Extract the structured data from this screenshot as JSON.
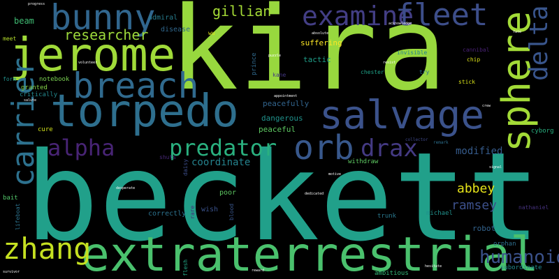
{
  "words": [
    {
      "text": "beckett",
      "color": "#21a08a"
    },
    {
      "text": "kira",
      "color": "#98d83e"
    },
    {
      "text": "extraterrestrial",
      "color": "#4ac16d"
    },
    {
      "text": "torpedo",
      "color": "#2e6f8e"
    },
    {
      "text": "jerome",
      "color": "#a0da39"
    },
    {
      "text": "bunny",
      "color": "#31668e"
    },
    {
      "text": "breach",
      "color": "#306a8e"
    },
    {
      "text": "salvage",
      "color": "#3b528b"
    },
    {
      "text": "sphere",
      "color": "#a2da37"
    },
    {
      "text": "carrier",
      "color": "#2d718e"
    },
    {
      "text": "zhang",
      "color": "#c5e021"
    },
    {
      "text": "examine",
      "color": "#433e85"
    },
    {
      "text": "fleet",
      "color": "#3d4e8a"
    },
    {
      "text": "delta",
      "color": "#39558c"
    },
    {
      "text": "orb",
      "color": "#38588c"
    },
    {
      "text": "predator",
      "color": "#2ab07f"
    },
    {
      "text": "drax",
      "color": "#443a83"
    },
    {
      "text": "alpha",
      "color": "#482475"
    },
    {
      "text": "humanoid",
      "color": "#3b528b"
    },
    {
      "text": "researcher",
      "color": "#9dd93b"
    },
    {
      "text": "gillian",
      "color": "#a5db36"
    },
    {
      "text": "abbey",
      "color": "#e7e419"
    },
    {
      "text": "ramsey",
      "color": "#3c508b"
    },
    {
      "text": "modified",
      "color": "#365c8d"
    },
    {
      "text": "coordinate",
      "color": "#25838e"
    },
    {
      "text": "dangerous",
      "color": "#20928c"
    },
    {
      "text": "peacefully",
      "color": "#32658e"
    },
    {
      "text": "peaceful",
      "color": "#5ec962"
    },
    {
      "text": "suffering",
      "color": "#fde725"
    },
    {
      "text": "tactic",
      "color": "#1f9e89"
    },
    {
      "text": "beam",
      "color": "#3fbc73"
    },
    {
      "text": "admiral",
      "color": "#287d8e"
    },
    {
      "text": "disease",
      "color": "#31688e"
    },
    {
      "text": "notebook",
      "color": "#7ad151"
    },
    {
      "text": "critically",
      "color": "#23898e"
    },
    {
      "text": "granted",
      "color": "#86d549"
    },
    {
      "text": "cure",
      "color": "#d2e21b"
    },
    {
      "text": "correctly",
      "color": "#2c728e"
    },
    {
      "text": "wish",
      "color": "#3b528b"
    },
    {
      "text": "poor",
      "color": "#5ec962"
    },
    {
      "text": "robot",
      "color": "#33638d"
    },
    {
      "text": "orphan",
      "color": "#2e6e8e"
    },
    {
      "text": "michael",
      "color": "#21918c"
    },
    {
      "text": "trunk",
      "color": "#2a788e"
    },
    {
      "text": "ambitious",
      "color": "#35b779"
    },
    {
      "text": "subordinate",
      "color": "#23898e"
    },
    {
      "text": "withdraw",
      "color": "#5ec962"
    },
    {
      "text": "shuts",
      "color": "#482878"
    },
    {
      "text": "chester",
      "color": "#1fa187"
    },
    {
      "text": "try",
      "color": "#2c728e"
    },
    {
      "text": "stick",
      "color": "#d8e219"
    },
    {
      "text": "chip",
      "color": "#dde318"
    },
    {
      "text": "cannibal",
      "color": "#482173"
    },
    {
      "text": "invisible",
      "color": "#26818e"
    },
    {
      "text": "meet",
      "color": "#b5de2b"
    },
    {
      "text": "form",
      "color": "#21918c"
    },
    {
      "text": "bait",
      "color": "#52c569"
    },
    {
      "text": "cyborg",
      "color": "#29af7f"
    },
    {
      "text": "nathaniel",
      "color": "#46327e"
    },
    {
      "text": "wu",
      "color": "#e5e419"
    },
    {
      "text": "prince",
      "color": "#306a8e"
    },
    {
      "text": "kane",
      "color": "#443983"
    },
    {
      "text": "rare",
      "color": "#472d7b"
    },
    {
      "text": "blood",
      "color": "#39568c"
    },
    {
      "text": "daisy",
      "color": "#3d4e8a"
    },
    {
      "text": "flesh",
      "color": "#22a785"
    },
    {
      "text": "lifeboat",
      "color": "#2c738e"
    },
    {
      "text": "remark",
      "color": "#2d708e"
    },
    {
      "text": "collector",
      "color": "#3f4889"
    },
    {
      "text": "progress",
      "color": "#ffffff"
    },
    {
      "text": "absolute",
      "color": "#ffffff"
    },
    {
      "text": "acknowledge",
      "color": "#ffffff"
    },
    {
      "text": "appointment",
      "color": "#ffffff"
    },
    {
      "text": "dedicated",
      "color": "#ffffff"
    },
    {
      "text": "desperate",
      "color": "#ffffff"
    },
    {
      "text": "motive",
      "color": "#ffffff"
    },
    {
      "text": "salute",
      "color": "#ffffff"
    },
    {
      "text": "puzzle",
      "color": "#ffffff"
    },
    {
      "text": "resist",
      "color": "#ffffff"
    },
    {
      "text": "volunteer",
      "color": "#ffffff"
    },
    {
      "text": "hesitate",
      "color": "#ffffff"
    },
    {
      "text": "reward",
      "color": "#ffffff"
    },
    {
      "text": "crew",
      "color": "#ffffff"
    },
    {
      "text": "fate",
      "color": "#ffffff"
    },
    {
      "text": "signal",
      "color": "#ffffff"
    },
    {
      "text": "survivor",
      "color": "#ffffff"
    }
  ]
}
